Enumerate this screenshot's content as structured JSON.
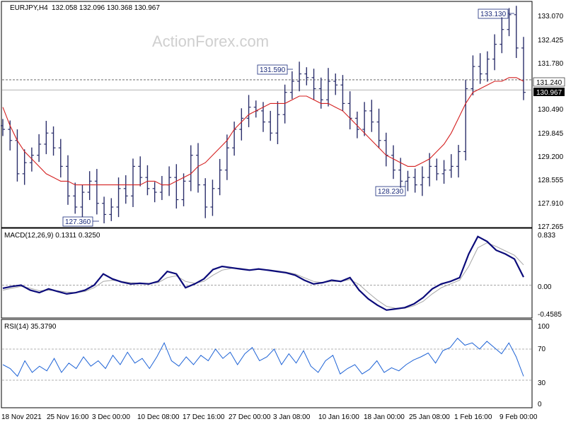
{
  "header": {
    "symbol_timeframe": "EURJPY,H4",
    "ohlc": "132.058 132.096 130.368 130.967",
    "watermark": "ActionForex.com"
  },
  "chart_data": [
    {
      "type": "bar",
      "subtype": "ohlc",
      "title": "EURJPY,H4",
      "ylim": [
        127.265,
        133.34
      ],
      "y_ticks": [
        "133.070",
        "132.425",
        "131.780",
        "131.240",
        "130.967",
        "130.490",
        "129.845",
        "129.200",
        "128.555",
        "127.910",
        "127.265"
      ],
      "x_ticks": [
        "18 Nov 2021",
        "25 Nov 16:00",
        "3 Dec 00:00",
        "10 Dec 08:00",
        "17 Dec 16:00",
        "27 Dec 00:00",
        "3 Jan 08:00",
        "10 Jan 16:00",
        "18 Jan 00:00",
        "25 Jan 08:00",
        "1 Feb 16:00",
        "9 Feb 00:00"
      ],
      "annotations": [
        "133.130",
        "131.590",
        "128.230",
        "127.360"
      ],
      "horizontal_lines": [
        {
          "label": "131.240",
          "value": 131.24,
          "style": "dashed"
        },
        {
          "label": "130.967",
          "value": 130.967,
          "style": "solid"
        }
      ],
      "series": [
        {
          "color": "#2b2f6b",
          "values": [
            129.9,
            129.6,
            128.7,
            129.0,
            129.2,
            129.5,
            129.8,
            129.4,
            128.9,
            128.1,
            127.8,
            128.2,
            128.5,
            127.9,
            127.6,
            127.8,
            128.3,
            128.1,
            128.9,
            128.6,
            128.3,
            128.2,
            128.4,
            128.6,
            128.0,
            128.5,
            129.2,
            128.4,
            127.8,
            128.3,
            128.8,
            129.4,
            129.9,
            130.2,
            130.5,
            130.4,
            130.1,
            129.8,
            130.3,
            130.9,
            131.2,
            131.4,
            131.3,
            131.0,
            130.7,
            131.2,
            131.1,
            130.6,
            130.2,
            129.9,
            130.4,
            130.1,
            129.6,
            129.2,
            128.8,
            128.5,
            128.6,
            128.4,
            128.6,
            128.9,
            128.7,
            128.8,
            128.9,
            129.3,
            131.0,
            131.6,
            131.4,
            131.8,
            132.2,
            132.6,
            133.0,
            132.1,
            130.9
          ]
        },
        {
          "name": "MA",
          "color": "#d42020",
          "values": [
            130.5,
            130.0,
            129.6,
            129.3,
            129.1,
            128.9,
            128.7,
            128.6,
            128.5,
            128.5,
            128.4,
            128.4,
            128.4,
            128.4,
            128.4,
            128.4,
            128.4,
            128.4,
            128.4,
            128.4,
            128.5,
            128.5,
            128.4,
            128.4,
            128.5,
            128.6,
            128.7,
            128.9,
            129.0,
            129.2,
            129.4,
            129.6,
            129.9,
            130.1,
            130.3,
            130.4,
            130.5,
            130.6,
            130.6,
            130.6,
            130.7,
            130.8,
            130.8,
            130.7,
            130.6,
            130.6,
            130.5,
            130.4,
            130.2,
            130.0,
            129.8,
            129.6,
            129.4,
            129.2,
            129.1,
            129.0,
            128.9,
            128.9,
            129.0,
            129.1,
            129.3,
            129.5,
            129.8,
            130.2,
            130.6,
            130.9,
            131.0,
            131.1,
            131.2,
            131.2,
            131.3,
            131.3,
            131.2
          ]
        }
      ]
    },
    {
      "type": "line",
      "title": "MACD(12,26,9) 0.1311 0.3250",
      "ylim": [
        -0.4585,
        0.833
      ],
      "y_ticks": [
        "0.833",
        "0.00",
        "-0.4585"
      ],
      "series": [
        {
          "name": "MACD",
          "color": "#0b0b7a",
          "values": [
            -0.05,
            -0.02,
            0.0,
            -0.08,
            -0.12,
            -0.06,
            -0.1,
            -0.14,
            -0.12,
            -0.08,
            0.0,
            0.18,
            0.1,
            0.05,
            0.02,
            0.03,
            0.02,
            0.06,
            0.22,
            0.18,
            -0.04,
            0.02,
            0.1,
            0.25,
            0.3,
            0.28,
            0.26,
            0.24,
            0.26,
            0.24,
            0.22,
            0.2,
            0.16,
            0.08,
            0.02,
            0.04,
            0.08,
            0.06,
            0.12,
            -0.08,
            -0.22,
            -0.32,
            -0.4,
            -0.38,
            -0.36,
            -0.3,
            -0.2,
            -0.06,
            0.02,
            0.06,
            0.12,
            0.5,
            0.78,
            0.7,
            0.56,
            0.5,
            0.42,
            0.13
          ]
        },
        {
          "name": "Signal",
          "color": "#a6a6a6",
          "values": [
            -0.08,
            -0.05,
            -0.02,
            -0.05,
            -0.09,
            -0.08,
            -0.09,
            -0.11,
            -0.12,
            -0.1,
            -0.04,
            0.06,
            0.08,
            0.06,
            0.04,
            0.03,
            0.03,
            0.04,
            0.12,
            0.15,
            0.06,
            0.03,
            0.06,
            0.16,
            0.24,
            0.27,
            0.27,
            0.25,
            0.25,
            0.25,
            0.23,
            0.21,
            0.18,
            0.12,
            0.06,
            0.04,
            0.06,
            0.06,
            0.09,
            0.01,
            -0.12,
            -0.24,
            -0.34,
            -0.37,
            -0.37,
            -0.33,
            -0.26,
            -0.14,
            -0.04,
            0.02,
            0.08,
            0.3,
            0.6,
            0.68,
            0.62,
            0.55,
            0.48,
            0.325
          ]
        }
      ]
    },
    {
      "type": "line",
      "title": "RSI(14) 35.3790",
      "ylim": [
        0,
        100
      ],
      "y_ticks": [
        "100",
        "70",
        "30",
        "0"
      ],
      "levels": [
        70,
        30
      ],
      "series": [
        {
          "name": "RSI",
          "color": "#1e63d6",
          "values": [
            50,
            45,
            35,
            55,
            40,
            48,
            42,
            58,
            40,
            52,
            45,
            60,
            48,
            55,
            45,
            62,
            50,
            66,
            52,
            58,
            45,
            60,
            78,
            55,
            48,
            60,
            50,
            62,
            55,
            70,
            58,
            66,
            50,
            64,
            72,
            55,
            60,
            70,
            50,
            64,
            52,
            68,
            48,
            40,
            55,
            62,
            38,
            45,
            50,
            38,
            44,
            55,
            40,
            46,
            42,
            50,
            56,
            60,
            65,
            52,
            68,
            72,
            84,
            75,
            78,
            70,
            80,
            72,
            64,
            78,
            60,
            35
          ]
        }
      ]
    }
  ]
}
